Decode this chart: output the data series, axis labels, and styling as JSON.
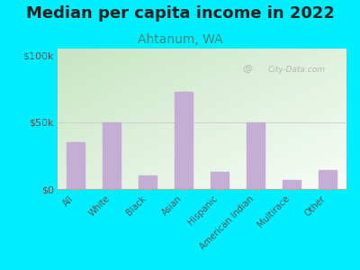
{
  "title": "Median per capita income in 2022",
  "subtitle": "Ahtanum, WA",
  "categories": [
    "All",
    "White",
    "Black",
    "Asian",
    "Hispanic",
    "American Indian",
    "Multirace",
    "Other"
  ],
  "values": [
    35000,
    50000,
    10000,
    73000,
    13000,
    50000,
    7000,
    14000
  ],
  "bar_color": "#c4aed4",
  "background_outer": "#00eeff",
  "title_color": "#222222",
  "subtitle_color": "#3a8a7a",
  "tick_color": "#555555",
  "yticks": [
    0,
    50000,
    100000
  ],
  "ytick_labels": [
    "$0",
    "$50k",
    "$100k"
  ],
  "ylim": [
    0,
    105000
  ],
  "watermark": "City-Data.com",
  "title_fontsize": 13,
  "subtitle_fontsize": 10,
  "plot_bg_color_topleft": "#c8e8b8",
  "plot_bg_color_topright": "#e8f0e0",
  "plot_bg_color_bottom": "#f8fef8"
}
